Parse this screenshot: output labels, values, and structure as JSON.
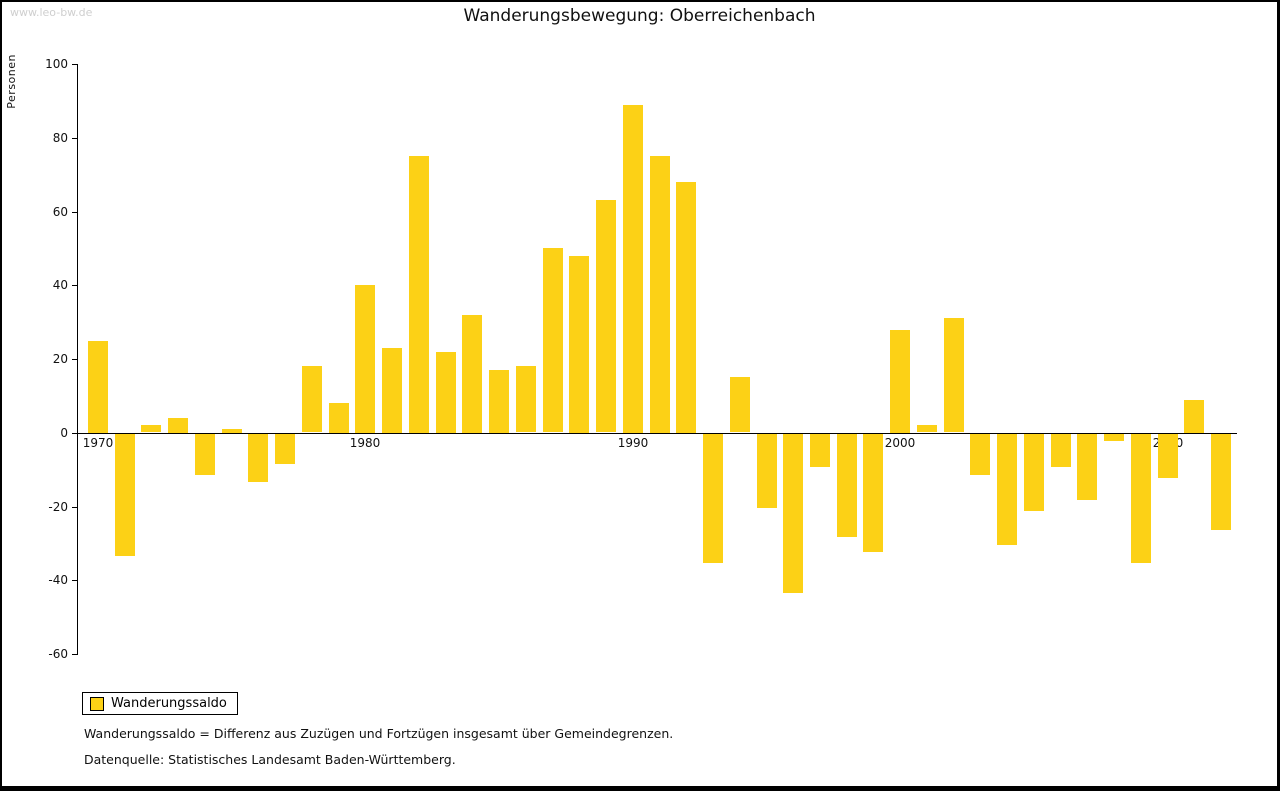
{
  "watermark": "www.leo-bw.de",
  "title": "Wanderungsbewegung: Oberreichenbach",
  "y_axis_title": "Personen",
  "legend": {
    "label": "Wanderungssaldo"
  },
  "footnotes": {
    "line1": "Wanderungssaldo = Differenz aus Zuzügen und Fortzügen insgesamt über Gemeindegrenzen.",
    "line2": "Datenquelle: Statistisches Landesamt Baden-Württemberg."
  },
  "colors": {
    "bar": "#FCD116",
    "axis": "#000000",
    "watermark": "#cfcfcf"
  },
  "chart_data": {
    "type": "bar",
    "title": "Wanderungsbewegung: Oberreichenbach",
    "xlabel": "",
    "ylabel": "Personen",
    "series_name": "Wanderungssaldo",
    "ylim": [
      -60,
      100
    ],
    "grid": false,
    "legend_position": "bottom-left",
    "y_ticks": [
      100,
      80,
      60,
      40,
      20,
      0,
      -20,
      -40,
      -60
    ],
    "x_tick_labels": [
      "1970",
      "1980",
      "1990",
      "2000",
      "2010"
    ],
    "years": [
      1970,
      1971,
      1972,
      1973,
      1974,
      1975,
      1976,
      1977,
      1978,
      1979,
      1980,
      1981,
      1982,
      1983,
      1984,
      1985,
      1986,
      1987,
      1988,
      1989,
      1990,
      1991,
      1992,
      1993,
      1994,
      1995,
      1996,
      1997,
      1998,
      1999,
      2000,
      2001,
      2002,
      2003,
      2004,
      2005,
      2006,
      2007,
      2008,
      2009,
      2010,
      2011,
      2012
    ],
    "values": [
      25,
      -33,
      2,
      4,
      -11,
      1,
      -13,
      -8,
      18,
      8,
      40,
      23,
      75,
      22,
      32,
      17,
      18,
      50,
      48,
      63,
      89,
      75,
      68,
      -35,
      15,
      -20,
      -43,
      -9,
      -28,
      -32,
      28,
      2,
      31,
      -11,
      -30,
      -21,
      -9,
      -18,
      -2,
      -35,
      -12,
      9,
      -26
    ]
  }
}
